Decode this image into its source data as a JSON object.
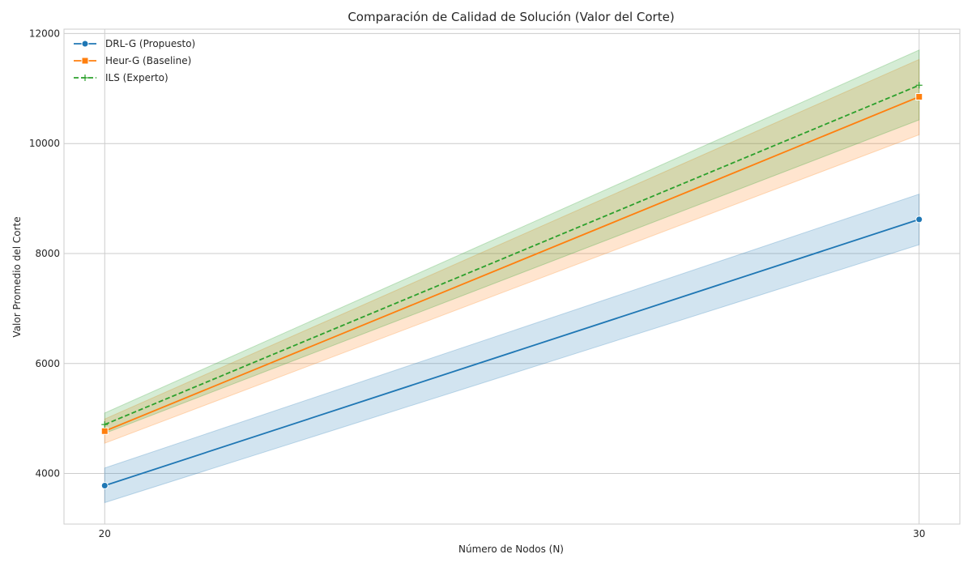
{
  "chart_data": {
    "type": "line",
    "title": "Comparación de Calidad de Solución (Valor del Corte)",
    "xlabel": "Número de Nodos (N)",
    "ylabel": "Valor Promedio del Corte",
    "x": [
      20,
      30
    ],
    "xlim": [
      19.5,
      30.5
    ],
    "ylim": [
      3080,
      12080
    ],
    "xticks": [
      20,
      30
    ],
    "yticks": [
      4000,
      6000,
      8000,
      10000,
      12000
    ],
    "grid": true,
    "legend": "top-left",
    "series": [
      {
        "name": "DRL-G (Propuesto)",
        "color": "#1f77b4",
        "marker": "circle",
        "dash": "solid",
        "values": [
          3780,
          8620
        ],
        "ci_low": [
          3470,
          8160
        ],
        "ci_high": [
          4100,
          9080
        ]
      },
      {
        "name": "Heur-G (Baseline)",
        "color": "#ff7f0e",
        "marker": "square",
        "dash": "solid",
        "values": [
          4770,
          10850
        ],
        "ci_low": [
          4550,
          10160
        ],
        "ci_high": [
          4990,
          11530
        ]
      },
      {
        "name": "ILS (Experto)",
        "color": "#2ca02c",
        "marker": "plus",
        "dash": "dashed",
        "values": [
          4890,
          11060
        ],
        "ci_low": [
          4730,
          10430
        ],
        "ci_high": [
          5100,
          11700
        ]
      }
    ]
  }
}
